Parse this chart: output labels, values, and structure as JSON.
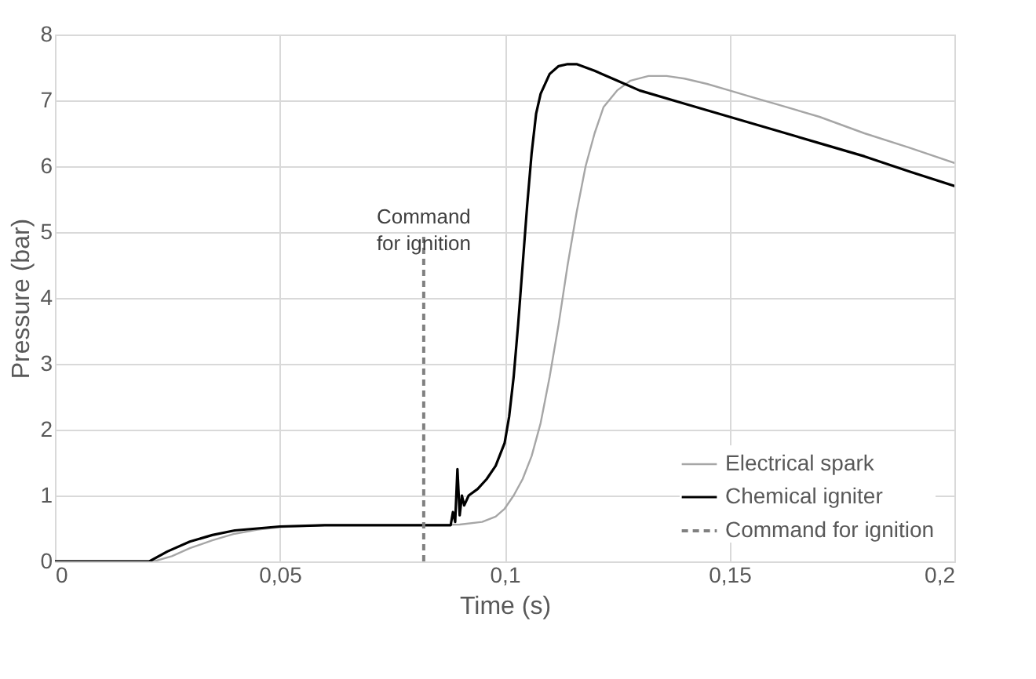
{
  "chart_data": {
    "type": "line",
    "xlabel": "Time (s)",
    "ylabel": "Pressure (bar)",
    "xlim": [
      0,
      0.2
    ],
    "xticks": [
      0,
      {
        "value": 0.05,
        "label": "0,05"
      },
      {
        "value": 0.1,
        "label": "0,1"
      },
      {
        "value": 0.15,
        "label": "0,15"
      },
      {
        "value": 0.2,
        "label": "0,2"
      }
    ],
    "ylim": [
      0,
      8
    ],
    "yticks": [
      0,
      1,
      2,
      3,
      4,
      5,
      6,
      7,
      8
    ],
    "grid": true,
    "legend": "bottom right",
    "line_style": "solid",
    "marker": "none",
    "series": [
      {
        "name": "Electrical spark",
        "color": "#a6a6a6",
        "x": [
          0,
          0.022,
          0.026,
          0.03,
          0.035,
          0.04,
          0.045,
          0.05,
          0.06,
          0.07,
          0.08,
          0.09,
          0.095,
          0.098,
          0.1,
          0.102,
          0.104,
          0.106,
          0.108,
          0.11,
          0.112,
          0.114,
          0.116,
          0.118,
          0.12,
          0.122,
          0.125,
          0.128,
          0.132,
          0.136,
          0.14,
          0.145,
          0.15,
          0.155,
          0.16,
          0.17,
          0.18,
          0.19,
          0.2
        ],
        "values": [
          0,
          0,
          0.08,
          0.2,
          0.32,
          0.42,
          0.48,
          0.52,
          0.55,
          0.55,
          0.55,
          0.56,
          0.6,
          0.68,
          0.8,
          1.0,
          1.25,
          1.6,
          2.1,
          2.8,
          3.6,
          4.5,
          5.3,
          6.0,
          6.5,
          6.9,
          7.15,
          7.3,
          7.37,
          7.37,
          7.33,
          7.25,
          7.15,
          7.05,
          6.95,
          6.75,
          6.5,
          6.28,
          6.05
        ]
      },
      {
        "name": "Chemical igniter",
        "color": "#000000",
        "x": [
          0,
          0.021,
          0.025,
          0.03,
          0.035,
          0.04,
          0.045,
          0.05,
          0.06,
          0.07,
          0.08,
          0.088,
          0.0885,
          0.089,
          0.0895,
          0.09,
          0.0905,
          0.091,
          0.092,
          0.094,
          0.096,
          0.098,
          0.1,
          0.101,
          0.102,
          0.103,
          0.104,
          0.105,
          0.106,
          0.107,
          0.108,
          0.11,
          0.112,
          0.114,
          0.116,
          0.118,
          0.12,
          0.125,
          0.13,
          0.14,
          0.15,
          0.16,
          0.17,
          0.18,
          0.19,
          0.2
        ],
        "values": [
          0,
          0,
          0.15,
          0.3,
          0.4,
          0.47,
          0.5,
          0.53,
          0.55,
          0.55,
          0.55,
          0.55,
          0.75,
          0.6,
          1.4,
          0.7,
          1.0,
          0.85,
          1.0,
          1.1,
          1.25,
          1.45,
          1.8,
          2.2,
          2.8,
          3.6,
          4.5,
          5.4,
          6.2,
          6.8,
          7.1,
          7.4,
          7.52,
          7.55,
          7.55,
          7.5,
          7.45,
          7.3,
          7.15,
          6.95,
          6.75,
          6.55,
          6.35,
          6.15,
          5.92,
          5.7
        ]
      }
    ],
    "ref_lines": [
      {
        "axis": "x",
        "value": 0.082,
        "label": "Command for ignition",
        "color": "#808080",
        "line_style": "dashed"
      }
    ]
  }
}
